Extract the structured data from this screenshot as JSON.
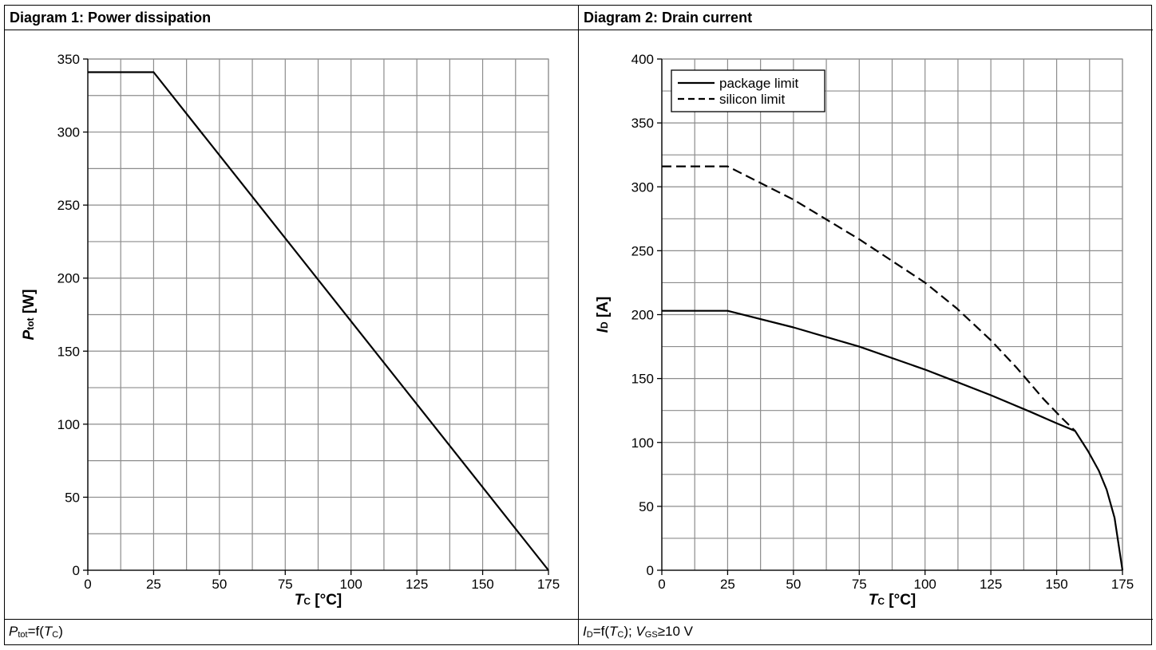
{
  "chart_data": [
    {
      "type": "line",
      "title": "Diagram 1: Power dissipation",
      "xlabel": {
        "main": "T",
        "sub": "C",
        "unit": " [°C]"
      },
      "ylabel": {
        "main": "P",
        "sub": "tot",
        "unit": " [W]"
      },
      "xlim": [
        0,
        175
      ],
      "ylim": [
        0,
        350
      ],
      "xticks": [
        0,
        25,
        50,
        75,
        100,
        125,
        150,
        175
      ],
      "yticks": [
        0,
        50,
        100,
        150,
        200,
        250,
        300,
        350
      ],
      "grid": true,
      "series": [
        {
          "style": "solid",
          "points": [
            [
              0,
              341
            ],
            [
              25,
              341
            ],
            [
              175,
              0
            ]
          ]
        }
      ],
      "caption": [
        {
          "t": "P",
          "i": true
        },
        {
          "t": "tot",
          "sub": true
        },
        {
          "t": "=f("
        },
        {
          "t": "T",
          "i": true
        },
        {
          "t": "C",
          "sub": true
        },
        {
          "t": ")"
        }
      ]
    },
    {
      "type": "line",
      "title": "Diagram 2: Drain current",
      "xlabel": {
        "main": "T",
        "sub": "C",
        "unit": " [°C]"
      },
      "ylabel": {
        "main": "I",
        "sub": "D",
        "unit": " [A]"
      },
      "xlim": [
        0,
        175
      ],
      "ylim": [
        0,
        400
      ],
      "xticks": [
        0,
        25,
        50,
        75,
        100,
        125,
        150,
        175
      ],
      "yticks": [
        0,
        50,
        100,
        150,
        200,
        250,
        300,
        350,
        400
      ],
      "grid": true,
      "legend_position": "top-left",
      "series": [
        {
          "name": "package limit",
          "style": "solid",
          "points": [
            [
              0,
              203
            ],
            [
              25,
              203
            ],
            [
              50,
              190
            ],
            [
              75,
              175
            ],
            [
              100,
              157
            ],
            [
              110,
              149
            ],
            [
              125,
              137
            ],
            [
              140,
              124
            ],
            [
              150,
              115
            ],
            [
              157,
              109
            ],
            [
              162,
              93
            ],
            [
              166,
              78
            ],
            [
              169,
              63
            ],
            [
              172,
              41
            ],
            [
              175,
              0
            ]
          ]
        },
        {
          "name": "silicon limit",
          "style": "dashed",
          "points": [
            [
              0,
              316
            ],
            [
              25,
              316
            ],
            [
              50,
              290
            ],
            [
              75,
              259
            ],
            [
              100,
              225
            ],
            [
              112,
              205
            ],
            [
              125,
              180
            ],
            [
              135,
              158
            ],
            [
              145,
              134
            ],
            [
              152,
              119
            ],
            [
              157,
              109
            ]
          ]
        }
      ],
      "caption": [
        {
          "t": "I",
          "i": true
        },
        {
          "t": "D",
          "sub": true
        },
        {
          "t": "=f("
        },
        {
          "t": "T",
          "i": true
        },
        {
          "t": "C",
          "sub": true
        },
        {
          "t": "); "
        },
        {
          "t": "V",
          "i": true
        },
        {
          "t": "GS",
          "sub": true
        },
        {
          "t": "≥10 V"
        }
      ]
    }
  ]
}
